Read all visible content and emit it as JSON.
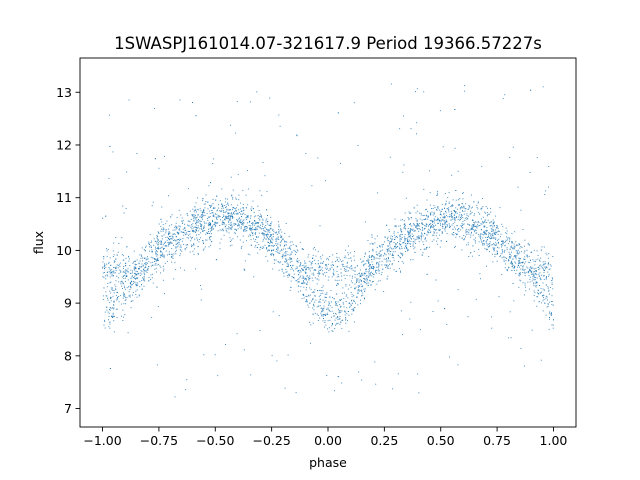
{
  "chart_data": {
    "type": "scatter",
    "title": "1SWASPJ161014.07-321617.9 Period 19366.57227s",
    "xlabel": "phase",
    "ylabel": "flux",
    "xlim": [
      -1.1,
      1.1
    ],
    "ylim": [
      6.65,
      13.65
    ],
    "xticks": [
      -1.0,
      -0.75,
      -0.5,
      -0.25,
      0.0,
      0.25,
      0.5,
      0.75,
      1.0
    ],
    "xtick_labels": [
      "−1.00",
      "−0.75",
      "−0.50",
      "−0.25",
      "0.00",
      "0.25",
      "0.50",
      "0.75",
      "1.00"
    ],
    "yticks": [
      7,
      8,
      9,
      10,
      11,
      12,
      13
    ],
    "ytick_labels": [
      "7",
      "8",
      "9",
      "10",
      "11",
      "12",
      "13"
    ],
    "grid": false,
    "marker_color": "#1f77b4",
    "series": [
      {
        "description": "folded light curve, two cycles plotted over phase -1 to 1",
        "x": [
          -1.0,
          -0.9,
          -0.8,
          -0.7,
          -0.6,
          -0.5,
          -0.45,
          -0.4,
          -0.3,
          -0.2,
          -0.1,
          -0.05,
          0.0,
          0.05,
          0.1,
          0.2,
          0.3,
          0.4,
          0.5,
          0.55,
          0.6,
          0.7,
          0.8,
          0.9,
          1.0
        ],
        "y": [
          8.8,
          9.2,
          9.8,
          10.2,
          10.45,
          10.6,
          10.65,
          10.6,
          10.4,
          10.0,
          9.4,
          9.0,
          8.85,
          8.75,
          9.1,
          9.75,
          10.1,
          10.4,
          10.55,
          10.6,
          10.55,
          10.35,
          10.0,
          9.5,
          8.9
        ],
        "secondary_branch_y_near_phase_edges": 9.65
      }
    ]
  }
}
